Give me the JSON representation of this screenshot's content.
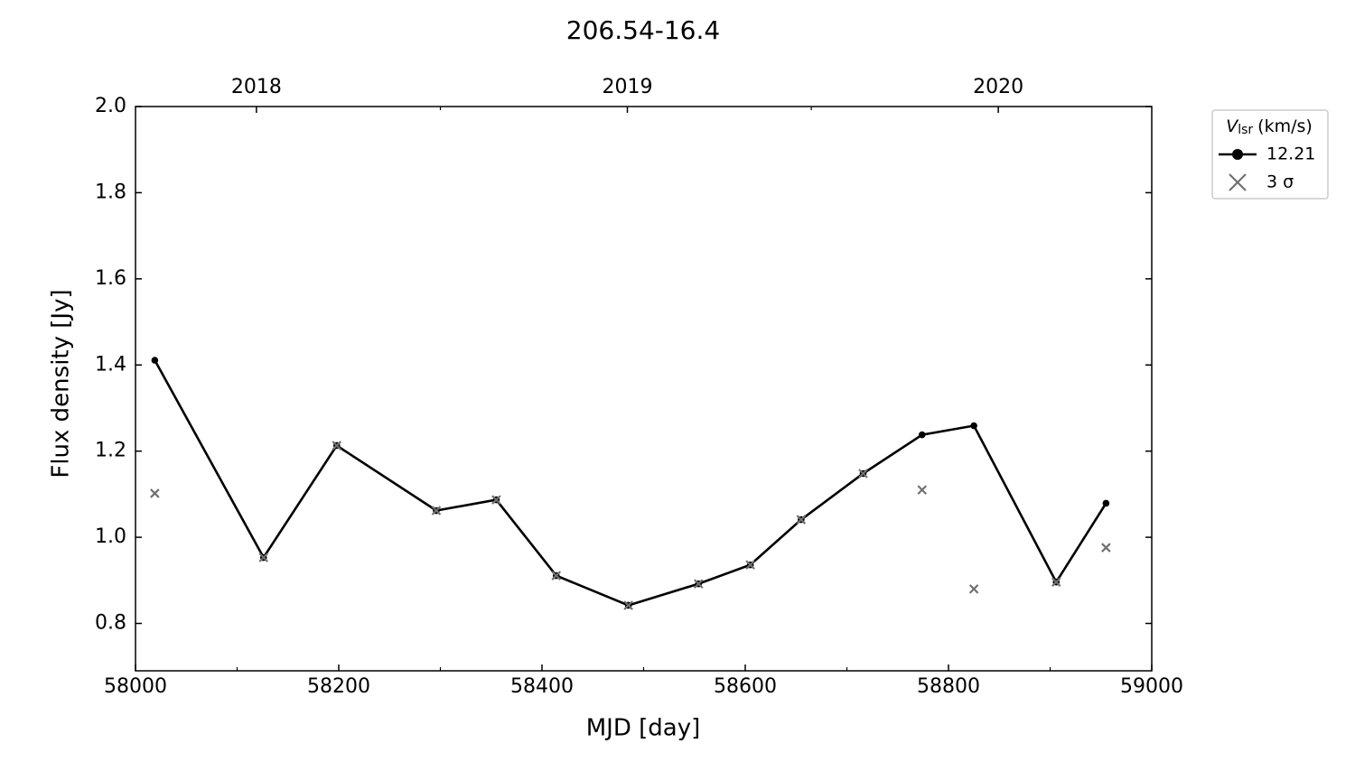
{
  "chart_data": {
    "type": "line",
    "title": "206.54-16.4",
    "xlabel": "MJD [day]",
    "ylabel": "Flux density [Jy]",
    "x": [
      58019,
      58126,
      58198,
      58296,
      58355,
      58414,
      58485,
      58554,
      58605,
      58655,
      58716,
      58774,
      58825,
      58906,
      58955
    ],
    "series": [
      {
        "name": "12.21",
        "color": "#000000",
        "marker": "dot",
        "values": [
          1.411,
          0.953,
          1.213,
          1.062,
          1.087,
          0.911,
          0.842,
          0.892,
          0.936,
          1.041,
          1.148,
          1.238,
          1.259,
          0.896,
          1.079
        ]
      },
      {
        "name": "3 σ",
        "color": "#707070",
        "marker": "x",
        "values": [
          1.102,
          0.953,
          1.213,
          1.062,
          1.087,
          0.911,
          0.842,
          0.892,
          0.936,
          1.041,
          1.148,
          1.11,
          0.88,
          0.896,
          0.976
        ]
      }
    ],
    "xlim": [
      58000,
      59000
    ],
    "xticks": [
      58000,
      58200,
      58400,
      58600,
      58800,
      59000
    ],
    "xminor_ticks": [
      58100,
      58300,
      58500,
      58700,
      58900
    ],
    "x2ticks": [
      {
        "value": 58119,
        "label": "2018"
      },
      {
        "value": 58484,
        "label": "2019"
      },
      {
        "value": 58849,
        "label": "2020"
      }
    ],
    "x2minor_ticks": [
      58300,
      58665
    ],
    "ylim": [
      0.69,
      2.0
    ],
    "yticks": [
      {
        "value": 0.8,
        "label": "0.8"
      },
      {
        "value": 1.0,
        "label": "1.0"
      },
      {
        "value": 1.2,
        "label": "1.2"
      },
      {
        "value": 1.4,
        "label": "1.4"
      },
      {
        "value": 1.6,
        "label": "1.6"
      },
      {
        "value": 1.8,
        "label": "1.8"
      },
      {
        "value": 2.0,
        "label": "2.0"
      }
    ],
    "grid": false,
    "legend": {
      "position": "outside-right",
      "title": {
        "symbol": "V",
        "subscript": "lsr",
        "unit": "(km/s)"
      }
    }
  }
}
